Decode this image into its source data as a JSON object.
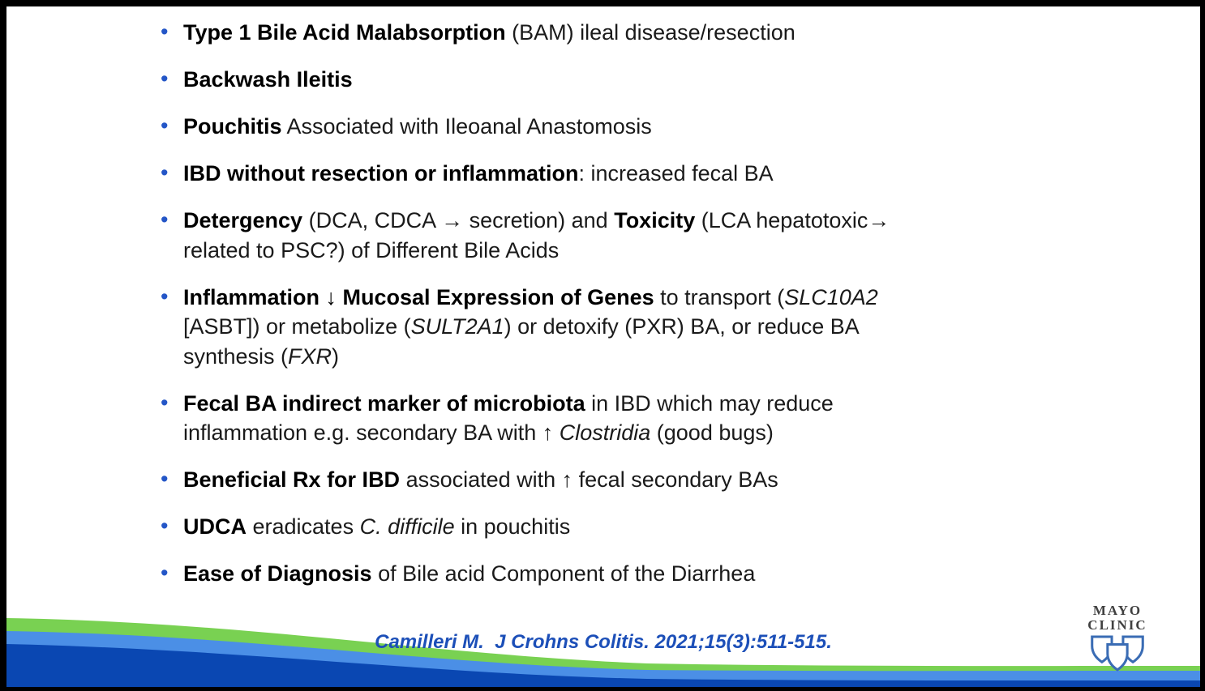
{
  "slide": {
    "bullets": [
      {
        "segments": [
          {
            "t": "Type 1 Bile Acid Malabsorption",
            "b": true
          },
          {
            "t": " (BAM) ileal disease/resection"
          }
        ]
      },
      {
        "segments": [
          {
            "t": "Backwash Ileitis",
            "b": true
          }
        ]
      },
      {
        "segments": [
          {
            "t": "Pouchitis",
            "b": true
          },
          {
            "t": " Associated with Ileoanal Anastomosis"
          }
        ]
      },
      {
        "segments": [
          {
            "t": "IBD without resection or inflammation",
            "b": true
          },
          {
            "t": ": increased fecal BA"
          }
        ]
      },
      {
        "segments": [
          {
            "t": "Detergency",
            "b": true
          },
          {
            "t": " (DCA, CDCA → secretion) and "
          },
          {
            "t": "Toxicity",
            "b": true
          },
          {
            "t": " (LCA hepatotoxic→"
          },
          {
            "br": true
          },
          {
            "t": "related to PSC?) of Different Bile Acids"
          }
        ]
      },
      {
        "segments": [
          {
            "t": "Inflammation ↓ Mucosal Expression of Genes",
            "b": true
          },
          {
            "t": " to transport ("
          },
          {
            "t": "SLC10A2",
            "i": true
          },
          {
            "br": true
          },
          {
            "t": "[ASBT]) or metabolize ("
          },
          {
            "t": "SULT2A1",
            "i": true
          },
          {
            "t": ") or detoxify (PXR) BA, or reduce BA"
          },
          {
            "br": true
          },
          {
            "t": "synthesis ("
          },
          {
            "t": "FXR",
            "i": true
          },
          {
            "t": ")"
          }
        ]
      },
      {
        "segments": [
          {
            "t": "Fecal BA indirect marker of microbiota",
            "b": true
          },
          {
            "t": " in IBD which may reduce"
          },
          {
            "br": true
          },
          {
            "t": "inflammation e.g. secondary BA with ↑ "
          },
          {
            "t": "Clostridia",
            "i": true
          },
          {
            "t": " (good bugs)"
          }
        ]
      },
      {
        "segments": [
          {
            "t": "Beneficial Rx for IBD",
            "b": true
          },
          {
            "t": " associated with ↑ fecal secondary BAs"
          }
        ]
      },
      {
        "segments": [
          {
            "t": "UDCA",
            "b": true
          },
          {
            "t": " eradicates "
          },
          {
            "t": "C. difficile",
            "i": true
          },
          {
            "t": " in pouchitis"
          }
        ]
      },
      {
        "segments": [
          {
            "t": "Ease of Diagnosis",
            "b": true
          },
          {
            "t": " of Bile acid Component of the Diarrhea"
          }
        ]
      }
    ],
    "citation": "Camilleri M.  J Crohns Colitis. 2021;15(3):511-515.",
    "logo": {
      "line1": "MAYO",
      "line2": "CLINIC"
    },
    "colors": {
      "text": "#1a1a1a",
      "bullet": "#2456c7",
      "citation": "#1c4fb8",
      "wave_green": "#79d152",
      "wave_light_blue": "#4b8fe6",
      "wave_dark_blue": "#0a47b2",
      "logo_text": "#404040",
      "logo_blue": "#3a6cb4"
    }
  }
}
